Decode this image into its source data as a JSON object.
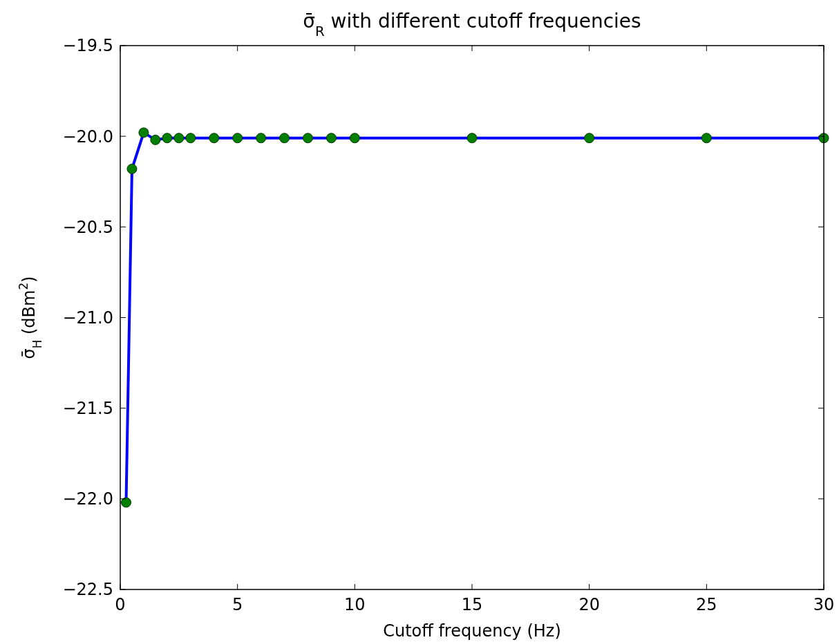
{
  "chart_data": {
    "type": "line",
    "title": "σ̄$_{R}$  with different cutoff frequencies",
    "xlabel": "Cutoff frequency (Hz)",
    "ylabel": "σ̄$_{H}$  (dBm$^{2}$)",
    "x": [
      0.25,
      0.5,
      1,
      1.5,
      2,
      2.5,
      3,
      4,
      5,
      6,
      7,
      8,
      9,
      10,
      15,
      20,
      25,
      30
    ],
    "series": [
      {
        "color": "#0000ff",
        "values": [
          -22.02,
          -20.18,
          -19.98,
          -20.02,
          -20.01,
          -20.01,
          -20.01,
          -20.01,
          -20.01,
          -20.01,
          -20.01,
          -20.01,
          -20.01,
          -20.01,
          -20.01,
          -20.01,
          -20.01,
          -20.01
        ]
      }
    ],
    "marker": "circle",
    "line_style": "solid",
    "grid": false,
    "xlim": [
      0,
      30
    ],
    "xticks": [
      0,
      5,
      10,
      15,
      20,
      25,
      30
    ],
    "ylim": [
      -22.5,
      -19.5
    ],
    "yticks": [
      {
        "value": -22.5,
        "label": "−22.5"
      },
      {
        "value": -22.0,
        "label": "−22.0"
      },
      {
        "value": -21.5,
        "label": "−21.5"
      },
      {
        "value": -21.0,
        "label": "−21.0"
      },
      {
        "value": -20.5,
        "label": "−20.5"
      },
      {
        "value": -20.0,
        "label": "−20.0"
      },
      {
        "value": -19.5,
        "label": "−19.5"
      }
    ]
  }
}
